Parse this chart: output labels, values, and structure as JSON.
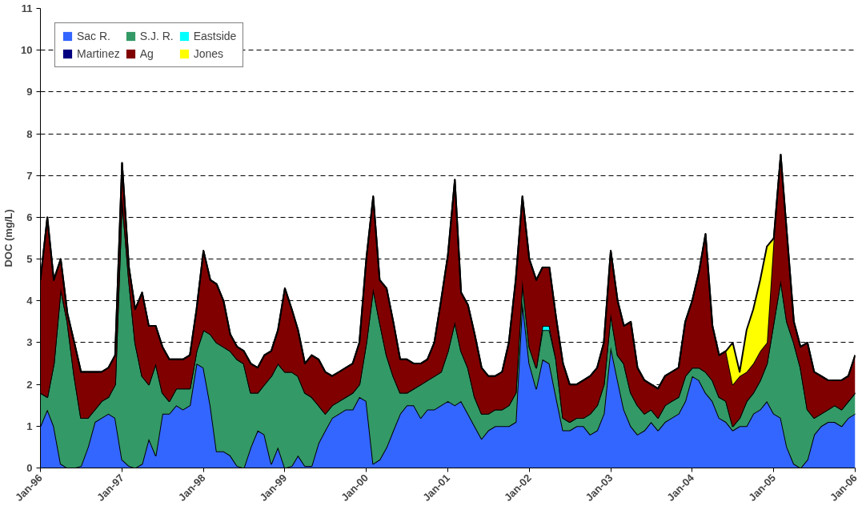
{
  "chart_data": {
    "type": "area",
    "stacked": true,
    "ylabel": "DOC (mg/L)",
    "x": [
      "1996-01",
      "1996-02",
      "1996-03",
      "1996-04",
      "1996-05",
      "1996-06",
      "1996-07",
      "1996-08",
      "1996-09",
      "1996-10",
      "1996-11",
      "1996-12",
      "1997-01",
      "1997-02",
      "1997-03",
      "1997-04",
      "1997-05",
      "1997-06",
      "1997-07",
      "1997-08",
      "1997-09",
      "1997-10",
      "1997-11",
      "1997-12",
      "1998-01",
      "1998-02",
      "1998-03",
      "1998-04",
      "1998-05",
      "1998-06",
      "1998-07",
      "1998-08",
      "1998-09",
      "1998-10",
      "1998-11",
      "1998-12",
      "1999-01",
      "1999-02",
      "1999-03",
      "1999-04",
      "1999-05",
      "1999-06",
      "1999-07",
      "1999-08",
      "1999-09",
      "1999-10",
      "1999-11",
      "1999-12",
      "2000-01",
      "2000-02",
      "2000-03",
      "2000-04",
      "2000-05",
      "2000-06",
      "2000-07",
      "2000-08",
      "2000-09",
      "2000-10",
      "2000-11",
      "2000-12",
      "2001-01",
      "2001-02",
      "2001-03",
      "2001-04",
      "2001-05",
      "2001-06",
      "2001-07",
      "2001-08",
      "2001-09",
      "2001-10",
      "2001-11",
      "2001-12",
      "2002-01",
      "2002-02",
      "2002-03",
      "2002-04",
      "2002-05",
      "2002-06",
      "2002-07",
      "2002-08",
      "2002-09",
      "2002-10",
      "2002-11",
      "2002-12",
      "2003-01",
      "2003-02",
      "2003-03",
      "2003-04",
      "2003-05",
      "2003-06",
      "2003-07",
      "2003-08",
      "2003-09",
      "2003-10",
      "2003-11",
      "2003-12",
      "2004-01",
      "2004-02",
      "2004-03",
      "2004-04",
      "2004-05",
      "2004-06",
      "2004-07",
      "2004-08",
      "2004-09",
      "2004-10",
      "2004-11",
      "2004-12",
      "2005-01",
      "2005-02",
      "2005-03",
      "2005-04",
      "2005-05",
      "2005-06",
      "2005-07",
      "2005-08",
      "2005-09",
      "2005-10",
      "2005-11",
      "2005-12",
      "2006-01"
    ],
    "series": [
      {
        "name": "Sac R.",
        "color": "#3366ff",
        "values": [
          1.0,
          1.4,
          1.0,
          0.1,
          0,
          0,
          0.05,
          0.5,
          1.1,
          1.2,
          1.3,
          1.2,
          0.2,
          0.05,
          0,
          0.1,
          0.7,
          0.3,
          1.3,
          1.3,
          1.5,
          1.4,
          1.5,
          2.5,
          2.4,
          1.5,
          0.4,
          0.4,
          0.3,
          0.05,
          0,
          0.5,
          0.9,
          0.8,
          0.1,
          0.5,
          0,
          0.05,
          0.3,
          0.05,
          0.05,
          0.6,
          0.9,
          1.2,
          1.3,
          1.4,
          1.4,
          1.7,
          1.6,
          0.1,
          0.2,
          0.5,
          0.9,
          1.3,
          1.5,
          1.5,
          1.2,
          1.4,
          1.4,
          1.5,
          1.6,
          1.5,
          1.6,
          1.3,
          1.0,
          0.7,
          0.9,
          1.0,
          1.0,
          1.0,
          1.1,
          4.0,
          2.5,
          1.9,
          2.6,
          2.5,
          1.7,
          0.9,
          0.9,
          1.0,
          1.0,
          0.8,
          0.9,
          1.3,
          2.9,
          2.1,
          1.4,
          1.0,
          0.8,
          0.9,
          1.1,
          0.9,
          1.1,
          1.2,
          1.3,
          1.6,
          2.2,
          2.1,
          1.8,
          1.6,
          1.2,
          1.1,
          0.9,
          1.0,
          1.0,
          1.3,
          1.4,
          1.6,
          1.3,
          1.2,
          0.5,
          0.1,
          0,
          0.2,
          0.8,
          1.0,
          1.1,
          1.1,
          1.0,
          1.2,
          1.3
        ]
      },
      {
        "name": "S.J. R.",
        "color": "#339966",
        "values": [
          0.8,
          0.3,
          1.5,
          4.2,
          3.5,
          2.2,
          1.15,
          0.7,
          0.3,
          0.4,
          0.4,
          0.8,
          6.3,
          4.45,
          3.0,
          2.1,
          1.3,
          2.2,
          0.5,
          0.3,
          0.4,
          0.5,
          0.4,
          0.3,
          0.9,
          1.7,
          2.6,
          2.5,
          2.5,
          2.55,
          2.5,
          1.3,
          0.9,
          1.2,
          2.1,
          2.0,
          2.3,
          2.25,
          1.9,
          1.75,
          1.65,
          0.9,
          0.4,
          0.3,
          0.3,
          0.3,
          0.4,
          0.3,
          1.4,
          4.2,
          3.3,
          2.2,
          1.3,
          0.5,
          0.3,
          0.4,
          0.8,
          0.7,
          0.8,
          0.8,
          1.2,
          2.0,
          1.2,
          1.1,
          0.7,
          0.6,
          0.4,
          0.4,
          0.4,
          0.5,
          0.7,
          0.5,
          0.4,
          0.5,
          0.7,
          0.8,
          0.9,
          0.3,
          0.2,
          0.2,
          0.2,
          0.5,
          0.6,
          0.7,
          0.8,
          0.6,
          1.1,
          0.8,
          0.7,
          0.4,
          0.3,
          0.3,
          0.4,
          0.4,
          0.4,
          0.6,
          0.2,
          0.3,
          0.5,
          0.5,
          0.5,
          0.5,
          0.1,
          0.2,
          0.6,
          0.5,
          0.7,
          0.9,
          2.2,
          3.3,
          3.0,
          2.9,
          2.4,
          1.2,
          0.4,
          0.3,
          0.3,
          0.4,
          0.4,
          0.4,
          0.5
        ]
      },
      {
        "name": "Eastside",
        "color": "#00ffff",
        "values": [
          0,
          0,
          0,
          0,
          0,
          0,
          0,
          0,
          0,
          0,
          0,
          0,
          0,
          0,
          0,
          0,
          0,
          0,
          0,
          0,
          0,
          0,
          0,
          0,
          0,
          0,
          0,
          0,
          0,
          0,
          0,
          0,
          0,
          0,
          0,
          0,
          0,
          0,
          0,
          0,
          0,
          0,
          0,
          0,
          0,
          0,
          0,
          0,
          0,
          0,
          0,
          0,
          0,
          0,
          0,
          0,
          0,
          0,
          0,
          0,
          0,
          0,
          0,
          0,
          0,
          0,
          0,
          0,
          0,
          0,
          0,
          0,
          0,
          0,
          0.1,
          0.1,
          0,
          0,
          0,
          0,
          0,
          0,
          0,
          0,
          0,
          0,
          0,
          0,
          0,
          0,
          0,
          0,
          0,
          0,
          0,
          0,
          0,
          0,
          0,
          0,
          0,
          0,
          0,
          0,
          0,
          0,
          0,
          0,
          0,
          0,
          0,
          0,
          0,
          0,
          0,
          0,
          0,
          0,
          0,
          0,
          0
        ]
      },
      {
        "name": "Martinez",
        "color": "#000080",
        "values": [
          null,
          null,
          null,
          null,
          null,
          null,
          null,
          null,
          null,
          null,
          null,
          null,
          null,
          null,
          null,
          null,
          null,
          null,
          null,
          null,
          null,
          null,
          null,
          null,
          null,
          null,
          null,
          null,
          null,
          null,
          null,
          null,
          null,
          null,
          null,
          null,
          null,
          null,
          null,
          null,
          null,
          null,
          null,
          null,
          null,
          null,
          null,
          null,
          null,
          null,
          null,
          null,
          null,
          null,
          null,
          null,
          null,
          null,
          null,
          null,
          null,
          null,
          null,
          null,
          null,
          null,
          null,
          null,
          null,
          null,
          null,
          null,
          null,
          null,
          null,
          null,
          null,
          null,
          null,
          null,
          null,
          null,
          null,
          null,
          null,
          null,
          null,
          null,
          null,
          null,
          null,
          null,
          null,
          null,
          null,
          null,
          null,
          null,
          null,
          null,
          null,
          null,
          null,
          null,
          null,
          null,
          null,
          null,
          null,
          null,
          null,
          null,
          null,
          null,
          null,
          null,
          null,
          null,
          null,
          null,
          null
        ]
      },
      {
        "name": "Ag",
        "color": "#800000",
        "values": [
          2.7,
          4.3,
          2.0,
          0.7,
          0.2,
          0.8,
          1.1,
          1.1,
          0.9,
          0.7,
          0.7,
          0.7,
          0.8,
          0.3,
          0.8,
          2.0,
          1.4,
          0.9,
          1.1,
          1.0,
          0.7,
          0.7,
          0.8,
          1.0,
          1.9,
          1.3,
          1.4,
          1.1,
          0.4,
          0.3,
          0.3,
          0.7,
          0.6,
          0.7,
          0.6,
          0.8,
          2.0,
          1.5,
          1.1,
          0.7,
          1.0,
          1.1,
          1.0,
          0.7,
          0.7,
          0.7,
          0.7,
          1.0,
          2.0,
          2.2,
          1.0,
          1.6,
          1.3,
          0.8,
          0.8,
          0.6,
          0.5,
          0.5,
          0.8,
          1.7,
          2.3,
          3.4,
          1.4,
          1.5,
          1.5,
          1.1,
          0.9,
          0.8,
          0.9,
          1.5,
          2.7,
          2.0,
          2.1,
          2.1,
          1.4,
          1.4,
          1.0,
          1.3,
          0.9,
          0.8,
          0.9,
          0.9,
          0.9,
          1.0,
          1.5,
          1.3,
          0.9,
          1.7,
          0.9,
          0.8,
          0.6,
          0.7,
          0.7,
          0.7,
          0.7,
          1.3,
          1.6,
          2.3,
          3.3,
          1.3,
          1.0,
          1.2,
          1.0,
          1.0,
          0.7,
          0.7,
          0.7,
          0.5,
          2.0,
          3.0,
          2.1,
          0.5,
          0.5,
          1.6,
          1.1,
          0.9,
          0.7,
          0.6,
          0.7,
          0.6,
          0.9
        ]
      },
      {
        "name": "Jones",
        "color": "#ffff00",
        "values": [
          0,
          0,
          0,
          0,
          0,
          0,
          0,
          0,
          0,
          0,
          0,
          0,
          0,
          0,
          0,
          0,
          0,
          0,
          0,
          0,
          0,
          0,
          0,
          0,
          0,
          0,
          0,
          0,
          0,
          0,
          0,
          0,
          0,
          0,
          0,
          0,
          0,
          0,
          0,
          0,
          0,
          0,
          0,
          0,
          0,
          0,
          0,
          0,
          0,
          0,
          0,
          0,
          0,
          0,
          0,
          0,
          0,
          0,
          0,
          0,
          0,
          0,
          0,
          0,
          0,
          0,
          0,
          0,
          0,
          0,
          0,
          0,
          0,
          0,
          0,
          0,
          0,
          0,
          0,
          0,
          0,
          0,
          0,
          0,
          0,
          0,
          0,
          0,
          0,
          0,
          0,
          0,
          0,
          0,
          0,
          0,
          0,
          0,
          0,
          0,
          0,
          0,
          1.0,
          0.1,
          1.0,
          1.3,
          1.7,
          2.3,
          0,
          0,
          0,
          0,
          0,
          0,
          0,
          0,
          0,
          0,
          0,
          0,
          0
        ]
      }
    ],
    "xlim": [
      "1996-01",
      "2006-01"
    ],
    "xticks": [
      {
        "value": "1996-01",
        "label": "Jan-96"
      },
      {
        "value": "1997-01",
        "label": "Jan-97"
      },
      {
        "value": "1998-01",
        "label": "Jan-98"
      },
      {
        "value": "1999-01",
        "label": "Jan-99"
      },
      {
        "value": "2000-01",
        "label": "Jan-00"
      },
      {
        "value": "2001-01",
        "label": "Jan-01"
      },
      {
        "value": "2002-01",
        "label": "Jan-02"
      },
      {
        "value": "2003-01",
        "label": "Jan-03"
      },
      {
        "value": "2004-01",
        "label": "Jan-04"
      },
      {
        "value": "2005-01",
        "label": "Jan-05"
      },
      {
        "value": "2006-01",
        "label": "Jan-06"
      }
    ],
    "ylim": [
      0,
      11
    ],
    "yticks": [
      0,
      1,
      2,
      3,
      4,
      5,
      6,
      7,
      8,
      9,
      10,
      11
    ],
    "grid": "y",
    "legend": "top left"
  }
}
